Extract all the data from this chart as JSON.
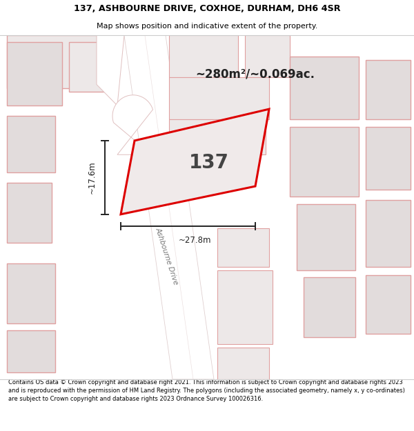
{
  "title_line1": "137, ASHBOURNE DRIVE, COXHOE, DURHAM, DH6 4SR",
  "title_line2": "Map shows position and indicative extent of the property.",
  "area_text": "~280m²/~0.069ac.",
  "plot_number": "137",
  "dim_width": "~27.8m",
  "dim_height": "~17.6m",
  "road_label": "Ashbourne Drive",
  "footer_text": "Contains OS data © Crown copyright and database right 2021. This information is subject to Crown copyright and database rights 2023 and is reproduced with the permission of HM Land Registry. The polygons (including the associated geometry, namely x, y co-ordinates) are subject to Crown copyright and database rights 2023 Ordnance Survey 100026316.",
  "map_bg": "#f2efef",
  "plot_fill": "#f0eaea",
  "plot_edge": "#dd0000",
  "road_fill": "#ffffff",
  "road_edge": "#e0d0d0",
  "building_fill_dark": "#e2dcdc",
  "building_fill_light": "#ede8e8",
  "building_edge": "#e0a0a0",
  "dim_color": "#222222",
  "area_color": "#222222",
  "title_bg": "#ffffff",
  "footer_bg": "#ffffff",
  "sep_color": "#cccccc"
}
